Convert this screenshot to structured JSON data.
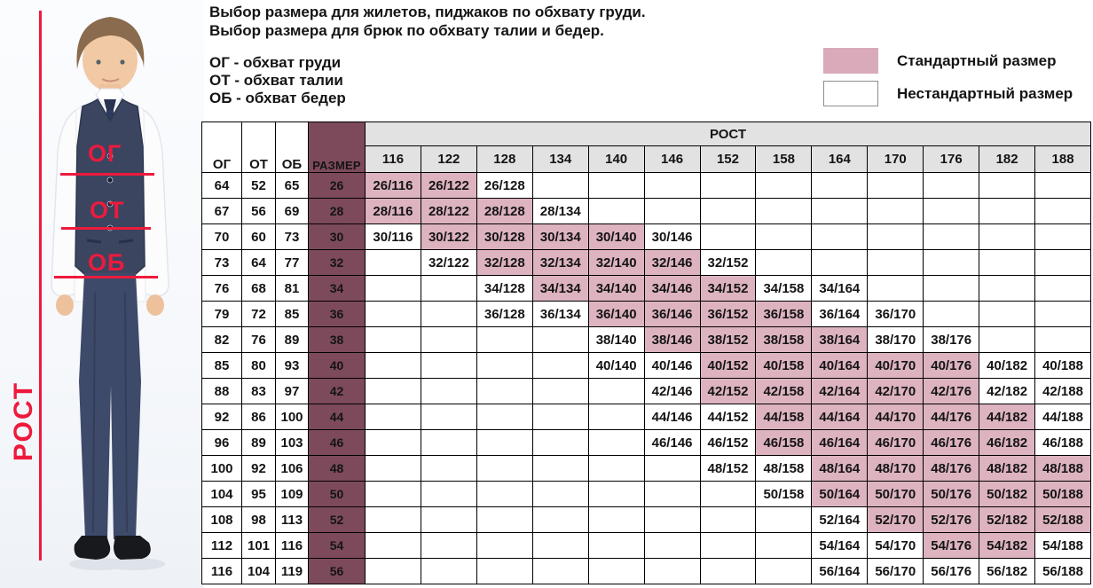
{
  "header": {
    "line1": "Выбор размера для жилетов, пиджаков по обхвату груди.",
    "line2": "Выбор размера для брюк по обхвату талии и бедер."
  },
  "definitions": {
    "chest": "ОГ - обхват груди",
    "waist": "ОТ - обхват талии",
    "hips": "ОБ - обхват бедер"
  },
  "legend": {
    "standard": {
      "label": "Стандартный размер",
      "color": "#d8aaba"
    },
    "nonstandard": {
      "label": "Нестандартный размер",
      "color": "#ffffff"
    }
  },
  "photo": {
    "accent_color": "#ee1a3d",
    "height_axis_label": "РОСТ",
    "chest_line_label": "ОГ",
    "waist_line_label": "ОТ",
    "hips_line_label": "ОБ"
  },
  "table": {
    "colors": {
      "size_column": "#7d4a5b",
      "standard_cell": "#ddb3c0",
      "header_bg": "#e2e2e2"
    },
    "columns": {
      "og": "ОГ",
      "ot": "ОТ",
      "ob": "ОБ",
      "size": "РАЗМЕР",
      "rost": "РОСТ"
    },
    "heights": [
      "116",
      "122",
      "128",
      "134",
      "140",
      "146",
      "152",
      "158",
      "164",
      "170",
      "176",
      "182",
      "188"
    ],
    "rows": [
      {
        "og": "64",
        "ot": "52",
        "ob": "65",
        "size": "26",
        "cells": [
          {
            "t": "26/116",
            "s": true
          },
          {
            "t": "26/122",
            "s": true
          },
          {
            "t": "26/128",
            "s": false
          },
          null,
          null,
          null,
          null,
          null,
          null,
          null,
          null,
          null,
          null
        ]
      },
      {
        "og": "67",
        "ot": "56",
        "ob": "69",
        "size": "28",
        "cells": [
          {
            "t": "28/116",
            "s": true
          },
          {
            "t": "28/122",
            "s": true
          },
          {
            "t": "28/128",
            "s": true
          },
          {
            "t": "28/134",
            "s": false
          },
          null,
          null,
          null,
          null,
          null,
          null,
          null,
          null,
          null
        ]
      },
      {
        "og": "70",
        "ot": "60",
        "ob": "73",
        "size": "30",
        "cells": [
          {
            "t": "30/116",
            "s": false
          },
          {
            "t": "30/122",
            "s": true
          },
          {
            "t": "30/128",
            "s": true
          },
          {
            "t": "30/134",
            "s": true
          },
          {
            "t": "30/140",
            "s": true
          },
          {
            "t": "30/146",
            "s": false
          },
          null,
          null,
          null,
          null,
          null,
          null,
          null
        ]
      },
      {
        "og": "73",
        "ot": "64",
        "ob": "77",
        "size": "32",
        "cells": [
          null,
          {
            "t": "32/122",
            "s": false
          },
          {
            "t": "32/128",
            "s": true
          },
          {
            "t": "32/134",
            "s": true
          },
          {
            "t": "32/140",
            "s": true
          },
          {
            "t": "32/146",
            "s": true
          },
          {
            "t": "32/152",
            "s": false
          },
          null,
          null,
          null,
          null,
          null,
          null
        ]
      },
      {
        "og": "76",
        "ot": "68",
        "ob": "81",
        "size": "34",
        "cells": [
          null,
          null,
          {
            "t": "34/128",
            "s": false
          },
          {
            "t": "34/134",
            "s": true
          },
          {
            "t": "34/140",
            "s": true
          },
          {
            "t": "34/146",
            "s": true
          },
          {
            "t": "34/152",
            "s": true
          },
          {
            "t": "34/158",
            "s": false
          },
          {
            "t": "34/164",
            "s": false
          },
          null,
          null,
          null,
          null
        ]
      },
      {
        "og": "79",
        "ot": "72",
        "ob": "85",
        "size": "36",
        "cells": [
          null,
          null,
          {
            "t": "36/128",
            "s": false
          },
          {
            "t": "36/134",
            "s": false
          },
          {
            "t": "36/140",
            "s": true
          },
          {
            "t": "36/146",
            "s": true
          },
          {
            "t": "36/152",
            "s": true
          },
          {
            "t": "36/158",
            "s": true
          },
          {
            "t": "36/164",
            "s": false
          },
          {
            "t": "36/170",
            "s": false
          },
          null,
          null,
          null
        ]
      },
      {
        "og": "82",
        "ot": "76",
        "ob": "89",
        "size": "38",
        "cells": [
          null,
          null,
          null,
          null,
          {
            "t": "38/140",
            "s": false
          },
          {
            "t": "38/146",
            "s": true
          },
          {
            "t": "38/152",
            "s": true
          },
          {
            "t": "38/158",
            "s": true
          },
          {
            "t": "38/164",
            "s": true
          },
          {
            "t": "38/170",
            "s": false
          },
          {
            "t": "38/176",
            "s": false
          },
          null,
          null
        ]
      },
      {
        "og": "85",
        "ot": "80",
        "ob": "93",
        "size": "40",
        "cells": [
          null,
          null,
          null,
          null,
          {
            "t": "40/140",
            "s": false
          },
          {
            "t": "40/146",
            "s": false
          },
          {
            "t": "40/152",
            "s": true
          },
          {
            "t": "40/158",
            "s": true
          },
          {
            "t": "40/164",
            "s": true
          },
          {
            "t": "40/170",
            "s": true
          },
          {
            "t": "40/176",
            "s": true
          },
          {
            "t": "40/182",
            "s": false
          },
          {
            "t": "40/188",
            "s": false
          }
        ]
      },
      {
        "og": "88",
        "ot": "83",
        "ob": "97",
        "size": "42",
        "cells": [
          null,
          null,
          null,
          null,
          null,
          {
            "t": "42/146",
            "s": false
          },
          {
            "t": "42/152",
            "s": true
          },
          {
            "t": "42/158",
            "s": true
          },
          {
            "t": "42/164",
            "s": true
          },
          {
            "t": "42/170",
            "s": true
          },
          {
            "t": "42/176",
            "s": true
          },
          {
            "t": "42/182",
            "s": false
          },
          {
            "t": "42/188",
            "s": false
          }
        ]
      },
      {
        "og": "92",
        "ot": "86",
        "ob": "100",
        "size": "44",
        "cells": [
          null,
          null,
          null,
          null,
          null,
          {
            "t": "44/146",
            "s": false
          },
          {
            "t": "44/152",
            "s": false
          },
          {
            "t": "44/158",
            "s": true
          },
          {
            "t": "44/164",
            "s": true
          },
          {
            "t": "44/170",
            "s": true
          },
          {
            "t": "44/176",
            "s": true
          },
          {
            "t": "44/182",
            "s": true
          },
          {
            "t": "44/188",
            "s": false
          }
        ]
      },
      {
        "og": "96",
        "ot": "89",
        "ob": "103",
        "size": "46",
        "cells": [
          null,
          null,
          null,
          null,
          null,
          {
            "t": "46/146",
            "s": false
          },
          {
            "t": "46/152",
            "s": false
          },
          {
            "t": "46/158",
            "s": true
          },
          {
            "t": "46/164",
            "s": true
          },
          {
            "t": "46/170",
            "s": true
          },
          {
            "t": "46/176",
            "s": true
          },
          {
            "t": "46/182",
            "s": true
          },
          {
            "t": "46/188",
            "s": false
          }
        ]
      },
      {
        "og": "100",
        "ot": "92",
        "ob": "106",
        "size": "48",
        "cells": [
          null,
          null,
          null,
          null,
          null,
          null,
          {
            "t": "48/152",
            "s": false
          },
          {
            "t": "48/158",
            "s": false
          },
          {
            "t": "48/164",
            "s": true
          },
          {
            "t": "48/170",
            "s": true
          },
          {
            "t": "48/176",
            "s": true
          },
          {
            "t": "48/182",
            "s": true
          },
          {
            "t": "48/188",
            "s": true
          }
        ]
      },
      {
        "og": "104",
        "ot": "95",
        "ob": "109",
        "size": "50",
        "cells": [
          null,
          null,
          null,
          null,
          null,
          null,
          null,
          {
            "t": "50/158",
            "s": false
          },
          {
            "t": "50/164",
            "s": true
          },
          {
            "t": "50/170",
            "s": true
          },
          {
            "t": "50/176",
            "s": true
          },
          {
            "t": "50/182",
            "s": true
          },
          {
            "t": "50/188",
            "s": true
          }
        ]
      },
      {
        "og": "108",
        "ot": "98",
        "ob": "113",
        "size": "52",
        "cells": [
          null,
          null,
          null,
          null,
          null,
          null,
          null,
          null,
          {
            "t": "52/164",
            "s": false
          },
          {
            "t": "52/170",
            "s": true
          },
          {
            "t": "52/176",
            "s": true
          },
          {
            "t": "52/182",
            "s": true
          },
          {
            "t": "52/188",
            "s": true
          }
        ]
      },
      {
        "og": "112",
        "ot": "101",
        "ob": "116",
        "size": "54",
        "cells": [
          null,
          null,
          null,
          null,
          null,
          null,
          null,
          null,
          {
            "t": "54/164",
            "s": false
          },
          {
            "t": "54/170",
            "s": false
          },
          {
            "t": "54/176",
            "s": true
          },
          {
            "t": "54/182",
            "s": true
          },
          {
            "t": "54/188",
            "s": false
          }
        ]
      },
      {
        "og": "116",
        "ot": "104",
        "ob": "119",
        "size": "56",
        "cells": [
          null,
          null,
          null,
          null,
          null,
          null,
          null,
          null,
          {
            "t": "56/164",
            "s": false
          },
          {
            "t": "56/170",
            "s": false
          },
          {
            "t": "56/176",
            "s": false
          },
          {
            "t": "56/182",
            "s": false
          },
          {
            "t": "56/188",
            "s": false
          }
        ]
      }
    ]
  }
}
